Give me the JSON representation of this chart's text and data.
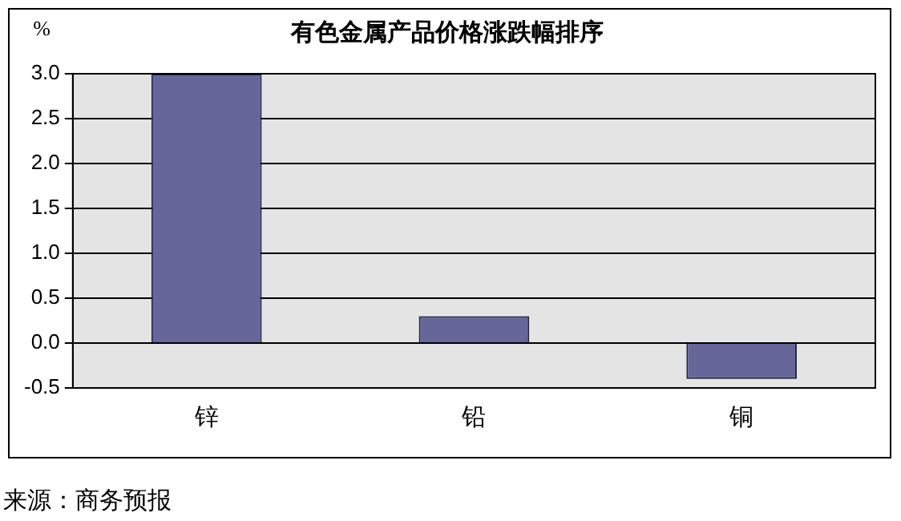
{
  "chart_data": {
    "type": "bar",
    "title": "有色金属产品价格涨跌幅排序",
    "ylabel": "%",
    "categories": [
      "锌",
      "铅",
      "铜"
    ],
    "values": [
      3.0,
      0.3,
      -0.4
    ],
    "color": "#666699",
    "ylim": [
      -0.5,
      3.0
    ],
    "yticks": [
      {
        "value": -0.5,
        "label": "-0.5"
      },
      {
        "value": 0,
        "label": "0.0"
      },
      {
        "value": 0.5,
        "label": "0.5"
      },
      {
        "value": 1,
        "label": "1.0"
      },
      {
        "value": 1.5,
        "label": "1.5"
      },
      {
        "value": 2,
        "label": "2.0"
      },
      {
        "value": 2.5,
        "label": "2.5"
      },
      {
        "value": 3,
        "label": "3.0"
      }
    ],
    "grid": "y",
    "legend": false,
    "annotations": [
      "来源：商务预报"
    ]
  }
}
